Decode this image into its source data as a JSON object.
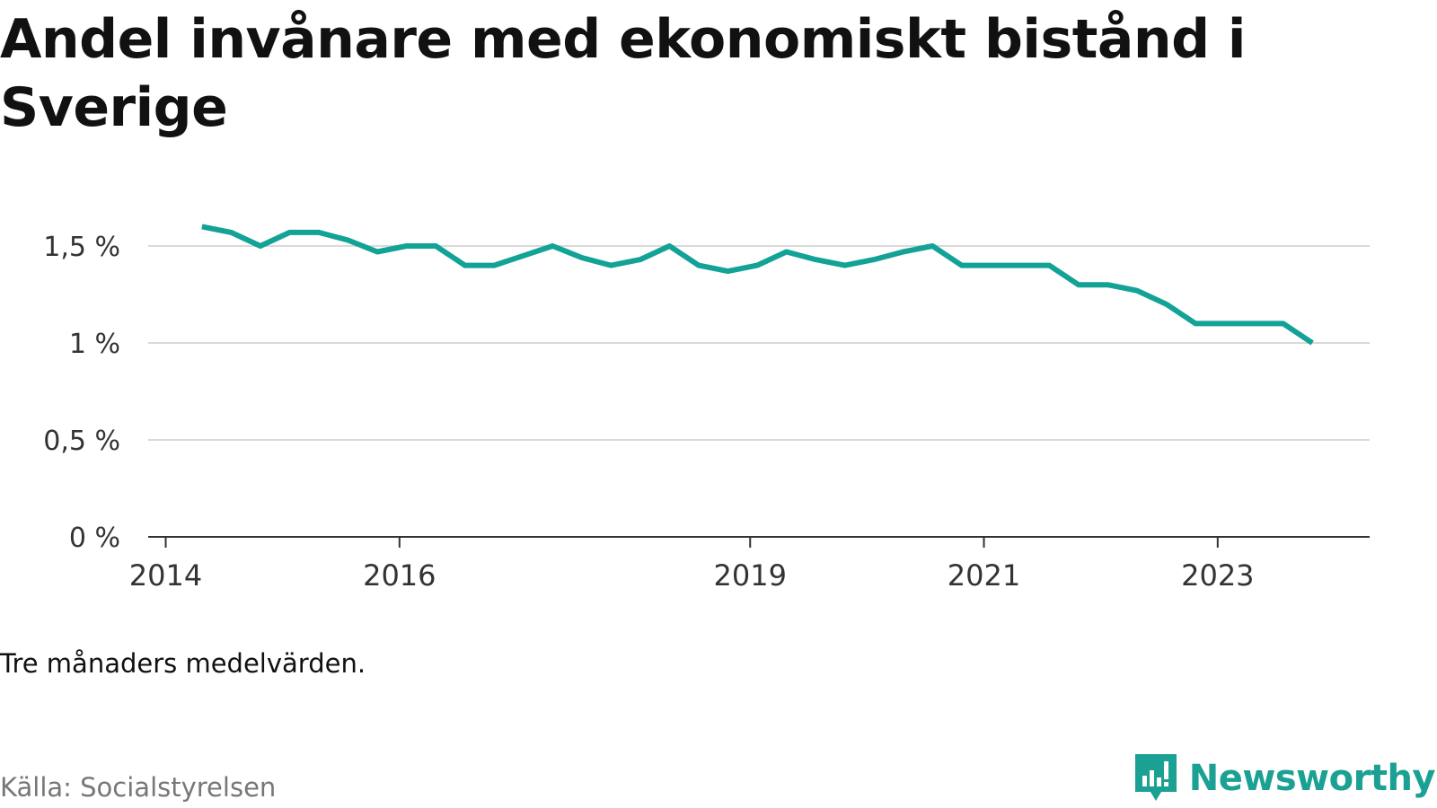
{
  "chart_data": {
    "type": "line",
    "title": "Andel invånare med ekonomiskt bistånd i Sverige",
    "xlabel": "",
    "ylabel": "",
    "x_tick_labels": [
      "2014",
      "2016",
      "2019",
      "2021",
      "2023"
    ],
    "x_tick_years": [
      2014,
      2016,
      2019,
      2021,
      2023
    ],
    "y_ticks": [
      0,
      0.5,
      1,
      1.5
    ],
    "y_tick_labels": [
      "0 %",
      "0,5 %",
      "1 %",
      "1,5 %"
    ],
    "ylim": [
      0,
      1.75
    ],
    "xlim": [
      2013.85,
      2024.3
    ],
    "grid": true,
    "series": [
      {
        "x": [
          2014.31,
          2014.56,
          2014.81,
          2015.06,
          2015.31,
          2015.56,
          2015.81,
          2016.06,
          2016.31,
          2016.56,
          2016.81,
          2017.06,
          2017.31,
          2017.56,
          2017.81,
          2018.06,
          2018.31,
          2018.56,
          2018.81,
          2019.06,
          2019.31,
          2019.56,
          2019.81,
          2020.06,
          2020.31,
          2020.56,
          2020.81,
          2021.06,
          2021.31,
          2021.56,
          2021.81,
          2022.06,
          2022.31,
          2022.56,
          2022.81,
          2023.06,
          2023.31,
          2023.56,
          2023.81
        ],
        "values": [
          1.6,
          1.57,
          1.5,
          1.57,
          1.57,
          1.53,
          1.47,
          1.5,
          1.5,
          1.4,
          1.4,
          1.45,
          1.5,
          1.44,
          1.4,
          1.43,
          1.5,
          1.4,
          1.37,
          1.4,
          1.47,
          1.43,
          1.4,
          1.43,
          1.47,
          1.5,
          1.4,
          1.4,
          1.4,
          1.4,
          1.3,
          1.3,
          1.27,
          1.2,
          1.1,
          1.1,
          1.1,
          1.1,
          1.0
        ]
      }
    ]
  },
  "colors": {
    "line": "#12a296",
    "grid": "#d9d9d9",
    "axis": "#333333",
    "brand": "#1aa194"
  },
  "note": "Tre månaders medelvärden.",
  "source": "Källa: Socialstyrelsen",
  "brand": {
    "name": "Newsworthy",
    "icon": "newsworthy-logo-icon"
  }
}
